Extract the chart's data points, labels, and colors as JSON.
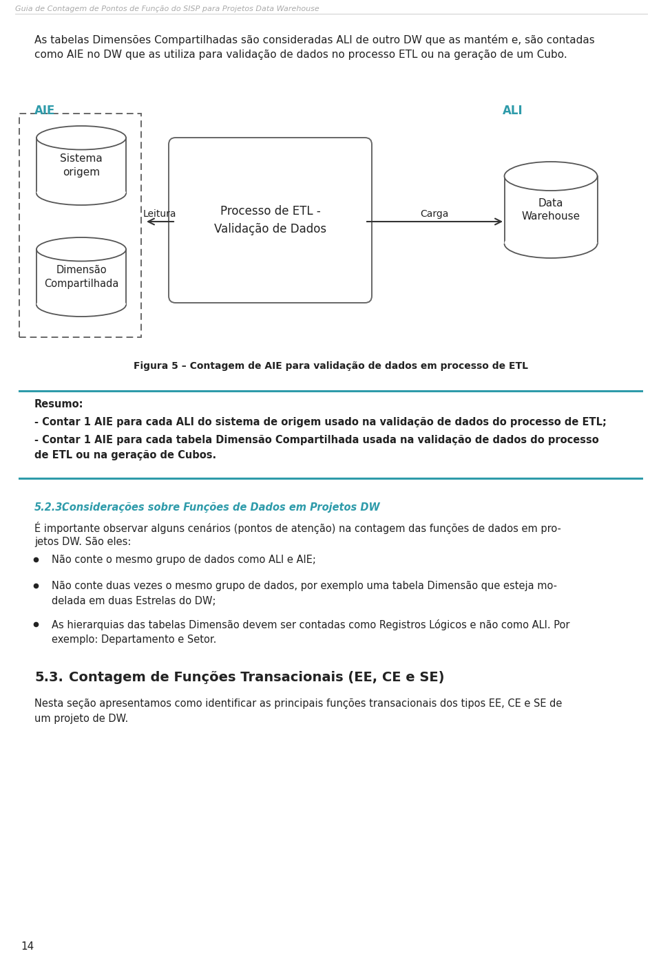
{
  "header_text": "Guia de Contagem de Pontos de Função do SISP para Projetos Data Warehouse",
  "bg_color": "#ffffff",
  "header_color": "#aaaaaa",
  "teal_color": "#2E9BAA",
  "dark_color": "#222222",
  "intro_text1": "As tabelas Dimensões Compartilhadas são consideradas ALI de outro DW que as mantém e, são contadas",
  "intro_text2": "como AIE no DW que as utiliza para validação de dados no processo ETL ou na geração de um Cubo.",
  "aie_label": "AIE",
  "ali_label": "ALI",
  "db1_label": "Sistema\norigem",
  "db2_label": "Dimensão\nCompartilhada",
  "etl_label": "Processo de ETL -\nValidação de Dados",
  "dw_label": "Data\nWarehouse",
  "arrow_left_label": "Leitura",
  "arrow_right_label": "Carga",
  "figure_caption": "Figura 5 – Contagem de AIE para validação de dados em processo de ETL",
  "resumo_title": "Resumo:",
  "resumo_line1": "- Contar 1 AIE para cada ALI do sistema de origem usado na validação de dados do processo de ETL;",
  "resumo_line2a": "- Contar 1 AIE para cada tabela Dimensão Compartilhada usada na validação de dados do processo",
  "resumo_line2b": "de ETL ou na geração de Cubos.",
  "section_num": "5.2.3.",
  "section_title_italic": "    Considerações sobre Funções de Dados em Projetos DW",
  "section_intro1": "É importante observar alguns cenários (pontos de atenção) na contagem das funções de dados em pro-",
  "section_intro2": "jetos DW. São eles:",
  "bullet1": "Não conte o mesmo grupo de dados como ALI e AIE;",
  "bullet2a": "Não conte duas vezes o mesmo grupo de dados, por exemplo uma tabela Dimensão que esteja mo-",
  "bullet2b": "delada em duas Estrelas do DW;",
  "bullet3a": "As hierarquias das tabelas Dimensão devem ser contadas como Registros Lógicos e não como ALI. Por",
  "bullet3b": "exemplo: Departamento e Setor.",
  "section2_num": "5.3.",
  "section2_title": "   Contagem de Funções Transacionais (EE, CE e SE)",
  "section2_intro1": "Nesta seção apresentamos como identificar as principais funções transacionais dos tipos EE, CE e SE de",
  "section2_intro2": "um projeto de DW.",
  "page_number": "14"
}
